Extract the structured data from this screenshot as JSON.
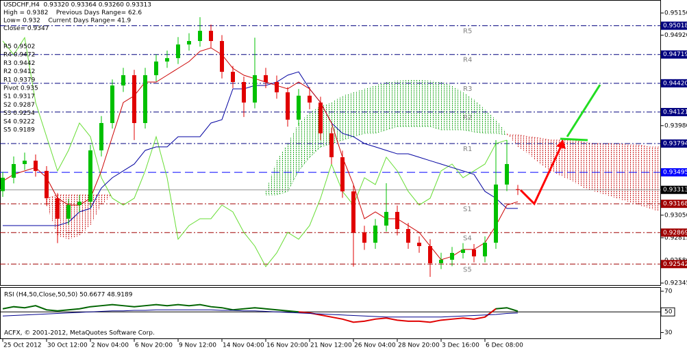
{
  "chart_data": {
    "type": "candlestick",
    "annotations": [
      "USDCHF,H4  0.93320 0.93364 0.93260 0.93313",
      "High = 0.9382    Previous Days Range= 62.6",
      "Low= 0.932    Current Days Range= 41.9",
      "Close= 0.9347",
      "R5 0.9502",
      "R4 0.9472",
      "R3 0.9442",
      "R2 0.9412",
      "R1 0.9379",
      "Pivot 0.935",
      "S1 0.9317",
      "S2 0.9287",
      "S3 0.9254",
      "S4 0.9222",
      "S5 0.9189"
    ],
    "categories": [
      "25 Oct 2012",
      null,
      null,
      null,
      "30 Oct 12:00",
      null,
      null,
      null,
      "2 Nov 04:00",
      null,
      null,
      null,
      "6 Nov 20:00",
      null,
      null,
      null,
      "9 Nov 12:00",
      null,
      null,
      null,
      "14 Nov 04:00",
      null,
      null,
      null,
      "16 Nov 20:00",
      null,
      null,
      null,
      "21 Nov 12:00",
      null,
      null,
      null,
      "26 Nov 04:00",
      null,
      null,
      null,
      "28 Nov 20:00",
      null,
      null,
      null,
      "3 Dec 16:00",
      null,
      null,
      null,
      "6 Dec 08:00",
      null,
      null,
      null,
      null,
      null,
      null,
      null,
      null,
      null,
      null,
      null,
      null,
      null,
      null,
      null,
      null
    ],
    "open": [
      0.933,
      0.93439,
      0.93581,
      0.93616,
      0.9351,
      0.93226,
      0.93013,
      0.93155,
      0.9319,
      0.93723,
      0.94007,
      0.94397,
      0.94504,
      0.94007,
      0.94504,
      0.94646,
      0.94681,
      0.94823,
      0.94859,
      0.94965,
      0.94859,
      0.94539,
      0.94433,
      0.9422,
      0.94504,
      0.94433,
      0.94326,
      0.94042,
      0.94291,
      0.9422,
      0.939,
      0.93652,
      0.93297,
      0.92871,
      0.92764,
      0.92942,
      0.93084,
      0.92906,
      0.92764,
      0.92729,
      0.92551,
      0.92587,
      0.92658,
      0.92693,
      0.92622,
      0.92764,
      0.93368,
      0.9332,
      null,
      null,
      null,
      null,
      null,
      null,
      null,
      null,
      null,
      null,
      null,
      null,
      null
    ],
    "high": [
      0.935,
      0.9366,
      0.937,
      0.9368,
      0.9356,
      0.9328,
      0.9322,
      0.9326,
      0.9378,
      0.9408,
      0.9446,
      0.9458,
      0.9456,
      0.9458,
      0.9472,
      0.9476,
      0.949,
      0.9494,
      0.95107,
      0.9503,
      0.9492,
      0.946,
      0.9449,
      0.94894,
      0.9458,
      0.945,
      0.9438,
      0.9436,
      0.9438,
      0.9428,
      0.9396,
      0.9372,
      0.9336,
      0.9294,
      0.9301,
      0.93382,
      0.9315,
      0.9297,
      0.9283,
      0.928,
      0.9266,
      0.9272,
      0.9276,
      0.9275,
      0.9283,
      0.93829,
      0.93829,
      0.93364,
      null,
      null,
      null,
      null,
      null,
      null,
      null,
      null,
      null,
      null,
      null,
      null,
      null
    ],
    "low": [
      0.9324,
      0.9338,
      0.9352,
      0.9345,
      0.9315,
      0.9276,
      0.9295,
      0.9308,
      0.9313,
      0.9366,
      0.9395,
      0.9433,
      0.9383,
      0.9395,
      0.9444,
      0.9458,
      0.9462,
      0.9476,
      0.948,
      0.9479,
      0.9447,
      0.9437,
      0.9407,
      0.9416,
      0.9437,
      0.9426,
      0.9397,
      0.9398,
      0.9415,
      0.9383,
      0.9358,
      0.9323,
      0.92516,
      0.9269,
      0.927,
      0.9288,
      0.9284,
      0.927,
      0.9266,
      0.92409,
      0.9249,
      0.9252,
      0.926,
      0.9256,
      0.9256,
      0.927,
      0.933,
      0.9326,
      null,
      null,
      null,
      null,
      null,
      null,
      null,
      null,
      null,
      null,
      null,
      null,
      null
    ],
    "close": [
      0.93439,
      0.93581,
      0.93616,
      0.9351,
      0.93226,
      0.93013,
      0.93155,
      0.9319,
      0.93723,
      0.94007,
      0.94397,
      0.94504,
      0.94007,
      0.94504,
      0.94646,
      0.94681,
      0.94823,
      0.94859,
      0.94965,
      0.94859,
      0.94539,
      0.94433,
      0.9422,
      0.94504,
      0.94433,
      0.94326,
      0.94042,
      0.94291,
      0.9422,
      0.939,
      0.93652,
      0.93297,
      0.92871,
      0.92764,
      0.92942,
      0.93084,
      0.92906,
      0.92764,
      0.92729,
      0.92551,
      0.92587,
      0.92658,
      0.92693,
      0.92622,
      0.92764,
      0.93368,
      0.93581,
      0.93313,
      null,
      null,
      null,
      null,
      null,
      null,
      null,
      null,
      null,
      null,
      null,
      null,
      null
    ],
    "up_color": "#00c000",
    "down_color": "#e00000",
    "ylim": [
      0.92317,
      0.95285
    ],
    "yticks": [
      {
        "value": 0.9515,
        "label": "0.95150"
      },
      {
        "value": 0.9492,
        "label": "0.94920"
      },
      {
        "value": 0.9398,
        "label": "0.93980"
      },
      {
        "value": 0.9305,
        "label": "0.93050"
      },
      {
        "value": 0.92815,
        "label": "0.92815"
      },
      {
        "value": 0.9258,
        "label": "0.92580"
      },
      {
        "value": 0.92345,
        "label": "0.92345"
      }
    ],
    "levels": [
      {
        "name": "R5",
        "value": 0.95018,
        "label": "0.95018",
        "color": "#00007f",
        "style": "dashdot"
      },
      {
        "name": "R4",
        "value": 0.94719,
        "label": "0.94719",
        "color": "#00007f",
        "style": "dashdot"
      },
      {
        "name": "R3",
        "value": 0.9442,
        "label": "0.94420",
        "color": "#00007f",
        "style": "dashdot"
      },
      {
        "name": "R2",
        "value": 0.94121,
        "label": "0.94121",
        "color": "#00007f",
        "style": "dashdot"
      },
      {
        "name": "R1",
        "value": 0.93794,
        "label": "0.93794",
        "color": "#00007f",
        "style": "dashdot"
      },
      {
        "value": 0.93495,
        "label": "0.93495",
        "color": "#0000ff",
        "style": "dash"
      },
      {
        "value": 0.93313,
        "label": "0.93313",
        "color": "#909090",
        "style": "solid"
      },
      {
        "name": "S1",
        "value": 0.93168,
        "label": "0.93168",
        "color": "#a00000",
        "style": "dashdot"
      },
      {
        "name": "S4",
        "value": 0.92869,
        "label": "0.92869",
        "color": "#a00000",
        "style": "dashdot"
      },
      {
        "name": "S5",
        "value": 0.92542,
        "label": "0.92542",
        "color": "#a00000",
        "style": "dashdot"
      }
    ],
    "cloud": {
      "up_color": "#22aa22",
      "down_color": "#cc2222",
      "span_a": [
        null,
        null,
        null,
        null,
        0.93155,
        0.92836,
        0.928,
        0.92836,
        0.92943,
        0.93155,
        0.93261,
        null,
        null,
        null,
        null,
        null,
        null,
        null,
        null,
        null,
        null,
        null,
        null,
        null,
        0.93297,
        0.93616,
        0.93794,
        0.94007,
        0.94113,
        0.94184,
        0.9422,
        0.94291,
        0.94326,
        0.94362,
        0.94397,
        0.94433,
        0.94447,
        0.94454,
        0.94454,
        0.94447,
        0.94433,
        0.94397,
        0.94326,
        0.94255,
        0.94149,
        0.94042,
        0.939,
        0.93759,
        0.93687,
        0.93581,
        0.9351,
        0.93453,
        0.93403,
        0.93332,
        0.93297,
        0.93261,
        0.93226,
        0.9319,
        0.93155,
        0.9312,
        0.93084
      ],
      "span_b": [
        null,
        null,
        null,
        null,
        0.93226,
        0.93261,
        0.93261,
        0.93261,
        0.93261,
        0.93261,
        0.93261,
        null,
        null,
        null,
        null,
        null,
        null,
        null,
        null,
        null,
        null,
        null,
        null,
        null,
        0.93261,
        0.93261,
        0.93297,
        0.9351,
        0.93652,
        0.93759,
        0.93794,
        0.9383,
        0.93865,
        0.939,
        0.939,
        0.93936,
        0.93971,
        0.93971,
        0.93971,
        0.93971,
        0.93936,
        0.93936,
        0.93936,
        0.93915,
        0.939,
        0.939,
        0.93886,
        0.93886,
        0.93865,
        0.93851,
        0.9383,
        0.9383,
        0.9383,
        0.93808,
        0.93794,
        0.93794,
        0.93794,
        0.9378,
        0.9378,
        0.93759,
        0.93759
      ]
    },
    "series": [
      {
        "color": "#66dd33",
        "values": [
          0.94859,
          0.94717,
          0.94894,
          0.9422,
          0.93865,
          0.9351,
          0.93723,
          0.94007,
          0.93865,
          0.93439,
          0.93226,
          0.93155,
          0.93226,
          0.9351,
          0.93865,
          0.93439,
          0.928,
          0.92942,
          0.93013,
          0.93013,
          0.93155,
          0.93084,
          0.92871,
          0.92729,
          0.92516,
          0.92658,
          0.92871,
          0.928,
          0.92942,
          0.93226,
          0.93581,
          0.93297,
          0.93155,
          0.93439,
          0.93368,
          0.93652,
          0.9351,
          0.93297,
          0.93155,
          0.93226,
          0.9351,
          0.93581,
          0.93439,
          0.9351,
          0.93581,
          0.93794,
          0.9383,
          null,
          null,
          null,
          null,
          null,
          null,
          null,
          null,
          null,
          null,
          null,
          null,
          null,
          null
        ]
      },
      {
        "color": "#0000a0",
        "values": [
          0.92942,
          0.92942,
          0.92942,
          0.92942,
          0.92942,
          0.92942,
          0.92977,
          0.93084,
          0.9312,
          0.93332,
          0.93439,
          0.9351,
          0.93581,
          0.93723,
          0.93759,
          0.93759,
          0.93865,
          0.93865,
          0.93865,
          0.94007,
          0.94042,
          0.94362,
          0.94362,
          0.94397,
          0.94397,
          0.94433,
          0.94504,
          0.94539,
          0.94362,
          0.9422,
          0.94007,
          0.939,
          0.93865,
          0.93794,
          0.93759,
          0.93723,
          0.93687,
          0.93687,
          0.93652,
          0.93616,
          0.93581,
          0.93545,
          0.9351,
          0.93474,
          0.93297,
          0.93226,
          0.9312,
          0.9312,
          null,
          null,
          null,
          null,
          null,
          null,
          null,
          null,
          null,
          null,
          null,
          null,
          null
        ]
      },
      {
        "color": "#cc0000",
        "values": [
          0.93403,
          0.93474,
          0.9351,
          0.93545,
          0.93439,
          0.93226,
          0.93155,
          0.93155,
          0.93226,
          0.9351,
          0.93865,
          0.9422,
          0.94291,
          0.94433,
          0.94433,
          0.94504,
          0.94575,
          0.94646,
          0.94752,
          0.94788,
          0.94717,
          0.94575,
          0.94504,
          0.94468,
          0.94433,
          0.94397,
          0.94362,
          0.94433,
          0.94362,
          0.9422,
          0.94007,
          0.93652,
          0.93368,
          0.93013,
          0.93084,
          0.93013,
          0.93013,
          0.92942,
          0.92871,
          0.92729,
          0.92587,
          0.92622,
          0.92694,
          0.92694,
          0.92764,
          0.92942,
          0.93155,
          0.9319,
          null,
          null,
          null,
          null,
          null,
          null,
          null,
          null,
          null,
          null,
          null,
          null,
          null
        ]
      }
    ],
    "rsi": {
      "label": "RSI (H4,50,Close,50,50) 50.6677 48.9189",
      "ylim": [
        25,
        74
      ],
      "yticks": [
        70,
        50,
        30
      ],
      "level": 50,
      "series": [
        {
          "color": "#006400",
          "values": [
            53,
            55,
            54,
            56,
            52,
            51,
            52,
            53,
            55,
            56,
            57,
            56,
            55,
            56,
            57,
            56,
            57,
            56,
            57,
            55,
            54,
            52,
            53,
            54,
            53,
            52,
            51,
            50,
            null,
            null,
            null,
            null,
            null,
            null,
            null,
            null,
            null,
            null,
            null,
            null,
            null,
            null,
            null,
            null,
            45,
            53,
            54,
            50.6677,
            null,
            null,
            null,
            null,
            null,
            null,
            null,
            null,
            null,
            null,
            null,
            null,
            null
          ]
        },
        {
          "color": "#e00000",
          "values": [
            null,
            null,
            null,
            null,
            null,
            null,
            null,
            null,
            null,
            null,
            null,
            null,
            null,
            null,
            null,
            null,
            null,
            null,
            null,
            null,
            null,
            null,
            null,
            null,
            null,
            null,
            null,
            50,
            49,
            47,
            45,
            43,
            40,
            41,
            43,
            44,
            42,
            41,
            41,
            40,
            42,
            43,
            44,
            43,
            45,
            53,
            null,
            null,
            null,
            null,
            null,
            null,
            null,
            null,
            null,
            null,
            null,
            null,
            null,
            null,
            null
          ]
        },
        {
          "color": "#00008b",
          "values": [
            46,
            46.5,
            47,
            47.5,
            48,
            48.5,
            49,
            49.5,
            50,
            50.5,
            51,
            51,
            51.5,
            51.5,
            52,
            52,
            52,
            52,
            52,
            52,
            51.5,
            51.5,
            51,
            51,
            50.5,
            50,
            49.5,
            49,
            48.5,
            48,
            47.5,
            47,
            46.5,
            46,
            45.5,
            45,
            45,
            45,
            45,
            45,
            45,
            45.5,
            46,
            46.5,
            47,
            47.5,
            48.5,
            48.9189,
            null,
            null,
            null,
            null,
            null,
            null,
            null,
            null,
            null,
            null,
            null,
            null,
            null
          ]
        }
      ]
    },
    "footer": "ACFX, © 2001-2012, MetaQuotes Software Corp."
  }
}
